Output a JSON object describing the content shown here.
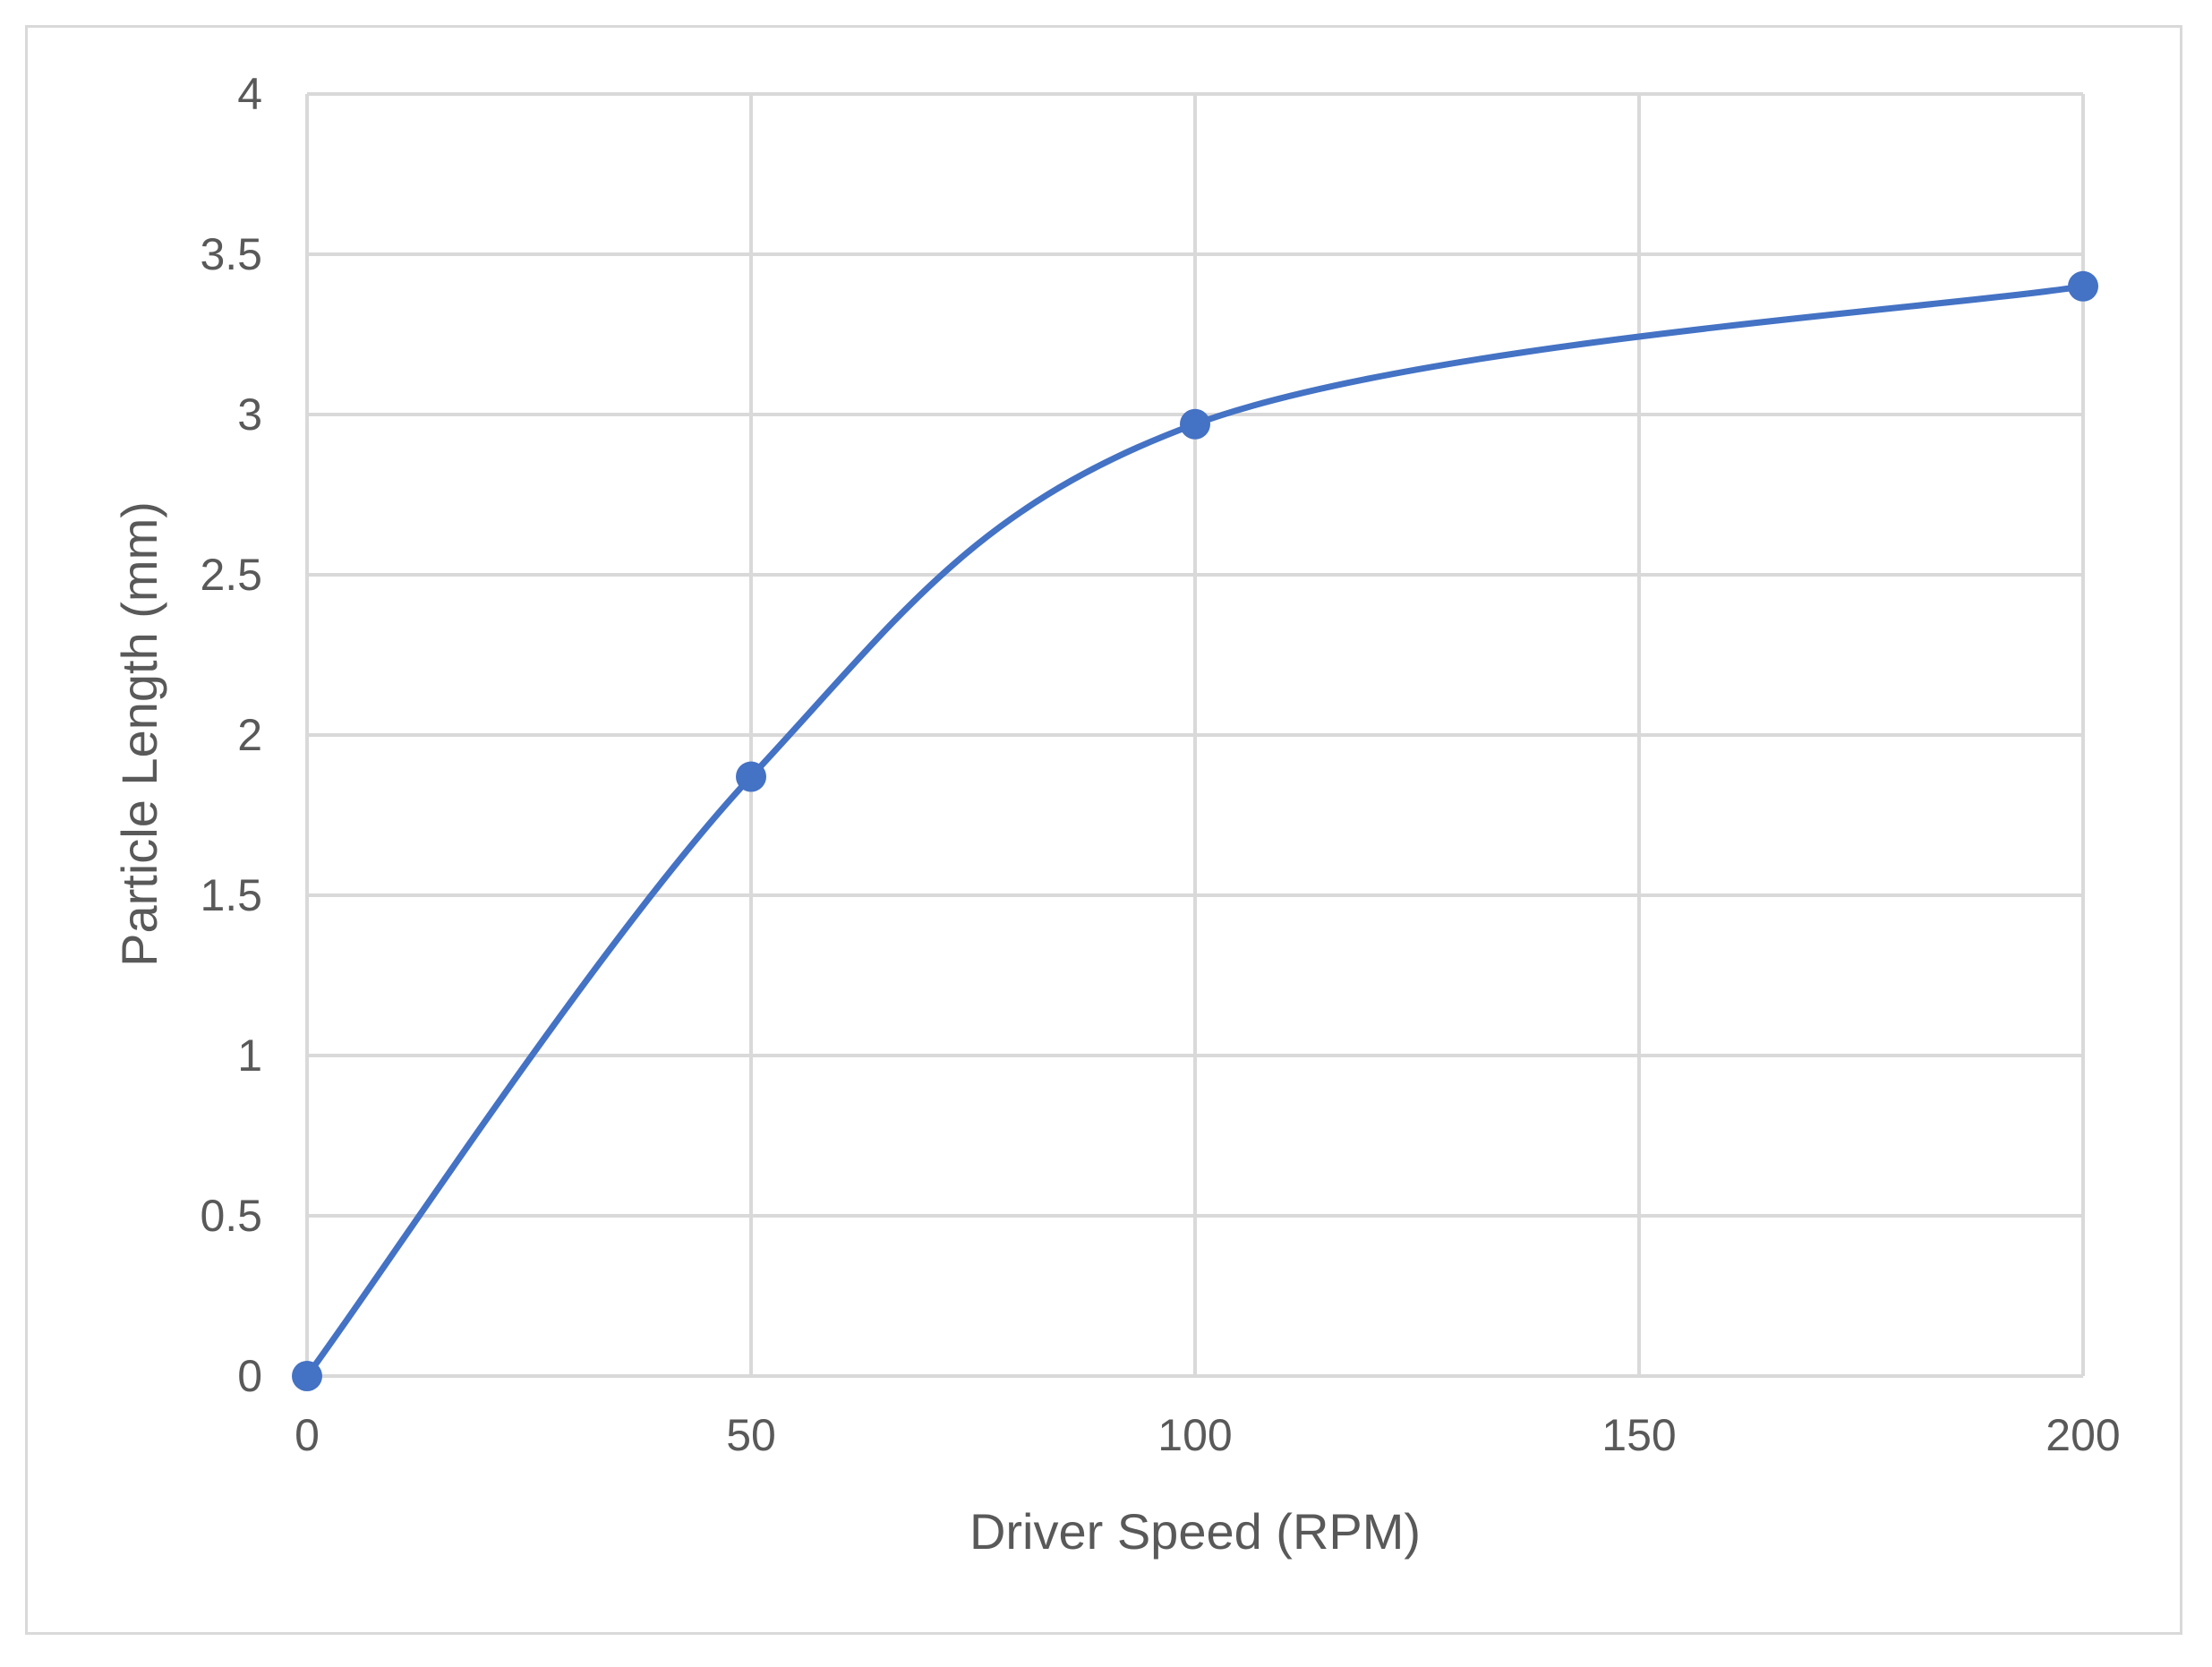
{
  "chart_data": {
    "type": "line",
    "smooth": true,
    "title": "",
    "xlabel": "Driver Speed (RPM)",
    "ylabel": "Particle Length (mm)",
    "xlim": [
      0,
      200
    ],
    "ylim": [
      0,
      4
    ],
    "x_ticks": [
      "0",
      "50",
      "100",
      "150",
      "200"
    ],
    "y_ticks": [
      "0",
      "0.5",
      "1",
      "1.5",
      "2",
      "2.5",
      "3",
      "3.5",
      "4"
    ],
    "grid": true,
    "legend": "none",
    "series": [
      {
        "x": [
          0,
          50,
          100,
          200
        ],
        "y": [
          0,
          1.87,
          2.97,
          3.4
        ],
        "color": "#4472c4",
        "marker": "circle"
      }
    ]
  }
}
